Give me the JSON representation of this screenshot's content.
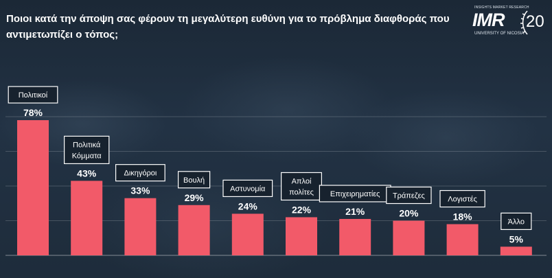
{
  "header": {
    "title": "Ποιοι κατά την άποψη σας φέρουν τη μεγαλύτερη ευθύνη για το πρόβλημα διαφθοράς που αντιμετωπίζει ο τόπος;"
  },
  "logo": {
    "tagline": "INSIGHTS MARKET RESEARCH",
    "mark": "IMR",
    "university": "UNIVERSITY OF NICOSIA",
    "year": "20"
  },
  "colors": {
    "bar": "#f25a69",
    "background": "#1d2a39",
    "text": "#ffffff"
  },
  "chart_data": {
    "type": "bar",
    "categories": [
      [
        "Πολιτικοί"
      ],
      [
        "Πολιτικά",
        "Κόμματα"
      ],
      [
        "Δικηγόροι"
      ],
      [
        "Βουλή"
      ],
      [
        "Αστυνομία"
      ],
      [
        "Απλοί",
        "πολίτες"
      ],
      [
        "Επιχειρηματίες"
      ],
      [
        "Τράπεζες"
      ],
      [
        "Λογιστές"
      ],
      [
        "Άλλο"
      ]
    ],
    "values": [
      78,
      43,
      33,
      29,
      24,
      22,
      21,
      20,
      18,
      5
    ],
    "value_labels": [
      "78%",
      "43%",
      "33%",
      "29%",
      "24%",
      "22%",
      "21%",
      "20%",
      "18%",
      "5%"
    ],
    "ylim": [
      0,
      80
    ],
    "grid": true
  }
}
